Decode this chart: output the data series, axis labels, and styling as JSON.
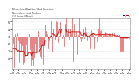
{
  "title": "Milwaukee Weather Wind Direction",
  "subtitle1": "Normalized and Median",
  "subtitle2": "(24 Hours) (New)",
  "background_color": "#ffffff",
  "plot_bg_color": "#ffffff",
  "grid_color": "#cccccc",
  "line_color_normalized": "#cc0000",
  "line_color_median": "#cc0000",
  "legend_color1": "#0000cc",
  "legend_color2": "#cc0000",
  "ylim": [
    -1.5,
    5.5
  ],
  "ylabel_ticks": [
    0,
    1,
    2,
    3,
    4,
    5
  ],
  "n_points": 144,
  "seed": 42
}
